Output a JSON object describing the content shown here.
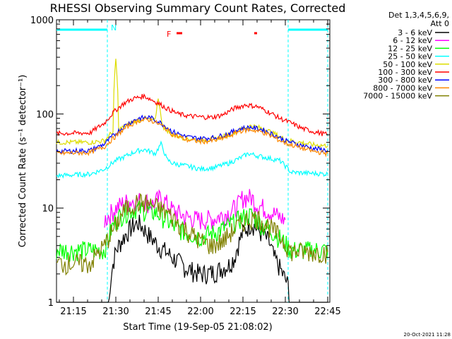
{
  "chart_data": {
    "type": "line",
    "title": "RHESSI Observing Summary Count Rates, Corrected",
    "xlabel": "Start Time (19-Sep-05 21:08:02)",
    "ylabel": "Corrected Count Rate (s⁻¹ detector⁻¹)",
    "yscale": "log",
    "ylim": [
      1,
      1000
    ],
    "xlim_minutes_after_21h": [
      8,
      46.5
    ],
    "x_ticks": [
      {
        "label": "21:15",
        "t": 15
      },
      {
        "label": "21:30",
        "t": 30
      },
      {
        "label": "21:45",
        "t": 45
      },
      {
        "label": "22:00",
        "t": 60
      },
      {
        "label": "22:15",
        "t": 75
      },
      {
        "label": "22:30",
        "t": 90
      },
      {
        "label": "22:45",
        "t": 105
      }
    ],
    "y_ticks": [
      {
        "label": "1",
        "v": 1
      },
      {
        "label": "10",
        "v": 10
      },
      {
        "label": "100",
        "v": 100
      },
      {
        "label": "1000",
        "v": 1000
      }
    ],
    "legend_position": "right",
    "legend_header": [
      "Det 1,3,4,5,6,9,",
      "Att 0"
    ],
    "annotations": {
      "N": "N",
      "F": "F"
    },
    "series": [
      {
        "name": "3 - 6 keV",
        "color": "#000000",
        "x": [
          8,
          27,
          28,
          30,
          33,
          36,
          38,
          40,
          42,
          45,
          50,
          55,
          60,
          65,
          70,
          72,
          75,
          78,
          80,
          84,
          86,
          89,
          91,
          93,
          105
        ],
        "y": [
          0,
          0,
          1.6,
          3.5,
          5.0,
          6.5,
          7.0,
          6.0,
          5.0,
          4.0,
          3.0,
          2.3,
          2.0,
          2.1,
          2.5,
          3.0,
          5.5,
          7.0,
          6.0,
          4.5,
          3.0,
          2.0,
          1.5,
          0,
          0
        ]
      },
      {
        "name": "6 - 12 keV",
        "color": "#ff00ff",
        "x": [
          26,
          30,
          33,
          36,
          40,
          43,
          46,
          50,
          55,
          60,
          65,
          70,
          73,
          75,
          78,
          80,
          84,
          88,
          90
        ],
        "y": [
          7.5,
          10,
          11.5,
          12,
          12,
          11,
          13,
          9.5,
          8.0,
          7.5,
          7.8,
          9.0,
          10.5,
          13.0,
          13.0,
          11,
          9.5,
          8,
          7.5
        ]
      },
      {
        "name": "12 - 25 keV",
        "color": "#00ff00",
        "x": [
          8,
          26,
          30,
          33,
          37,
          40,
          44,
          47,
          50,
          55,
          60,
          65,
          70,
          75,
          78,
          82,
          86,
          89,
          92,
          105
        ],
        "y": [
          3.6,
          3.6,
          7.5,
          9.0,
          10.0,
          9.5,
          9.0,
          8.0,
          6.5,
          5.5,
          5.0,
          5.5,
          6.5,
          8.0,
          8.5,
          6.5,
          5.5,
          4.5,
          3.6,
          3.6
        ]
      },
      {
        "name": "25 - 50 keV",
        "color": "#00ffff",
        "x": [
          8,
          21,
          26,
          28,
          30,
          33,
          37,
          40,
          44,
          46,
          48,
          50,
          55,
          60,
          65,
          70,
          74,
          77,
          80,
          84,
          88,
          90,
          92,
          105
        ],
        "y": [
          22,
          23,
          26,
          29,
          32,
          35,
          40,
          42,
          38,
          48,
          33,
          30,
          28,
          26,
          27,
          30,
          34,
          38,
          36,
          34,
          32,
          28,
          24,
          23
        ]
      },
      {
        "name": "50 - 100 keV",
        "color": "#dddd00",
        "x": [
          8,
          21,
          26,
          29,
          30,
          31,
          36,
          40,
          44,
          45,
          46,
          47,
          50,
          55,
          60,
          65,
          70,
          75,
          78,
          82,
          86,
          90,
          95,
          100,
          105
        ],
        "y": [
          50,
          50,
          52,
          65,
          380,
          68,
          82,
          90,
          85,
          150,
          90,
          72,
          60,
          55,
          53,
          54,
          60,
          70,
          75,
          70,
          62,
          53,
          50,
          47,
          46
        ]
      },
      {
        "name": "100 - 300 keV",
        "color": "#ff0000",
        "x": [
          8,
          21,
          26,
          30,
          33,
          36,
          40,
          44,
          48,
          52,
          56,
          60,
          64,
          68,
          72,
          76,
          80,
          84,
          88,
          92,
          96,
          100,
          105
        ],
        "y": [
          62,
          63,
          80,
          110,
          130,
          145,
          155,
          135,
          115,
          100,
          95,
          93,
          92,
          98,
          115,
          125,
          120,
          105,
          90,
          80,
          70,
          65,
          60
        ]
      },
      {
        "name": "300 - 800 keV",
        "color": "#0000ff",
        "x": [
          8,
          21,
          26,
          30,
          34,
          38,
          42,
          46,
          50,
          55,
          60,
          65,
          70,
          74,
          78,
          82,
          86,
          90,
          95,
          100,
          105
        ],
        "y": [
          40,
          41,
          48,
          62,
          78,
          90,
          92,
          80,
          65,
          57,
          55,
          56,
          62,
          70,
          72,
          68,
          60,
          52,
          47,
          43,
          41
        ]
      },
      {
        "name": "800 - 7000 keV",
        "color": "#ff8800",
        "x": [
          8,
          21,
          26,
          30,
          34,
          38,
          42,
          46,
          50,
          55,
          60,
          65,
          70,
          74,
          78,
          82,
          86,
          90,
          95,
          100,
          105
        ],
        "y": [
          38,
          39,
          45,
          58,
          73,
          85,
          87,
          76,
          61,
          53,
          51,
          52,
          58,
          66,
          68,
          64,
          56,
          49,
          44,
          40,
          38
        ]
      },
      {
        "name": "7000 - 15000 keV",
        "color": "#808000",
        "x": [
          8,
          21,
          26,
          30,
          33,
          37,
          40,
          44,
          48,
          52,
          56,
          60,
          64,
          68,
          72,
          76,
          80,
          84,
          88,
          92,
          105
        ],
        "y": [
          2.6,
          2.6,
          4.0,
          6.5,
          9.5,
          11.5,
          11.5,
          10.5,
          9.0,
          7.0,
          5.5,
          4.5,
          4.0,
          4.5,
          6.0,
          7.5,
          8.0,
          6.5,
          5.0,
          3.5,
          3.4
        ]
      }
    ],
    "night_intervals": [
      [
        8,
        27
      ],
      [
        91,
        105
      ]
    ],
    "flare_bars": [
      [
        51.5,
        53.5
      ],
      [
        79,
        80
      ]
    ]
  },
  "footer_timestamp": "20-Oct-2021 11:28"
}
